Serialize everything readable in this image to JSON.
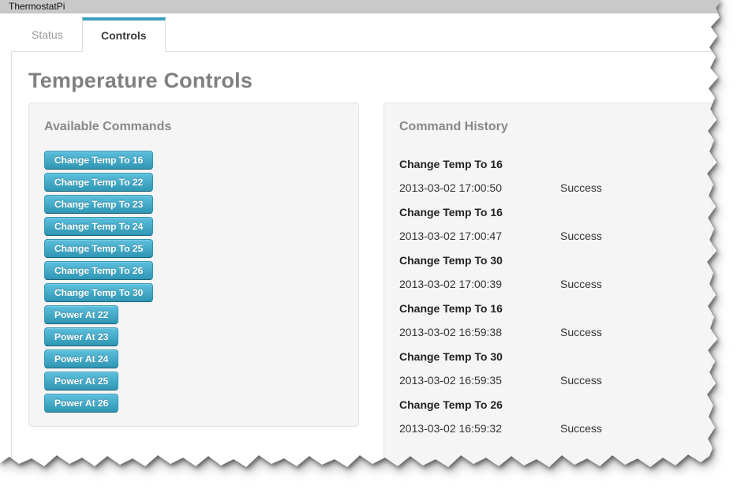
{
  "window": {
    "title": "ThermostatPi"
  },
  "tabs": [
    {
      "label": "Status",
      "active": false
    },
    {
      "label": "Controls",
      "active": true
    }
  ],
  "main": {
    "heading": "Temperature Controls"
  },
  "commands": {
    "heading": "Available Commands",
    "buttons": [
      "Change Temp To 16",
      "Change Temp To 22",
      "Change Temp To 23",
      "Change Temp To 24",
      "Change Temp To 25",
      "Change Temp To 26",
      "Change Temp To 30",
      "Power At 22",
      "Power At 23",
      "Power At 24",
      "Power At 25",
      "Power At 26"
    ]
  },
  "history": {
    "heading": "Command History",
    "entries": [
      {
        "command": "Change Temp To 16",
        "timestamp": "2013-03-02 17:00:50",
        "status": "Success"
      },
      {
        "command": "Change Temp To 16",
        "timestamp": "2013-03-02 17:00:47",
        "status": "Success"
      },
      {
        "command": "Change Temp To 30",
        "timestamp": "2013-03-02 17:00:39",
        "status": "Success"
      },
      {
        "command": "Change Temp To 16",
        "timestamp": "2013-03-02 16:59:38",
        "status": "Success"
      },
      {
        "command": "Change Temp To 30",
        "timestamp": "2013-03-02 16:59:35",
        "status": "Success"
      },
      {
        "command": "Change Temp To 26",
        "timestamp": "2013-03-02 16:59:32",
        "status": "Success"
      }
    ]
  },
  "colors": {
    "accent": "#3c9fc0",
    "button_gradient_top": "#5bc0de",
    "button_gradient_bottom": "#2f96b4",
    "titlebar": "#c9c9c9",
    "panel_bg": "#f5f5f5"
  }
}
